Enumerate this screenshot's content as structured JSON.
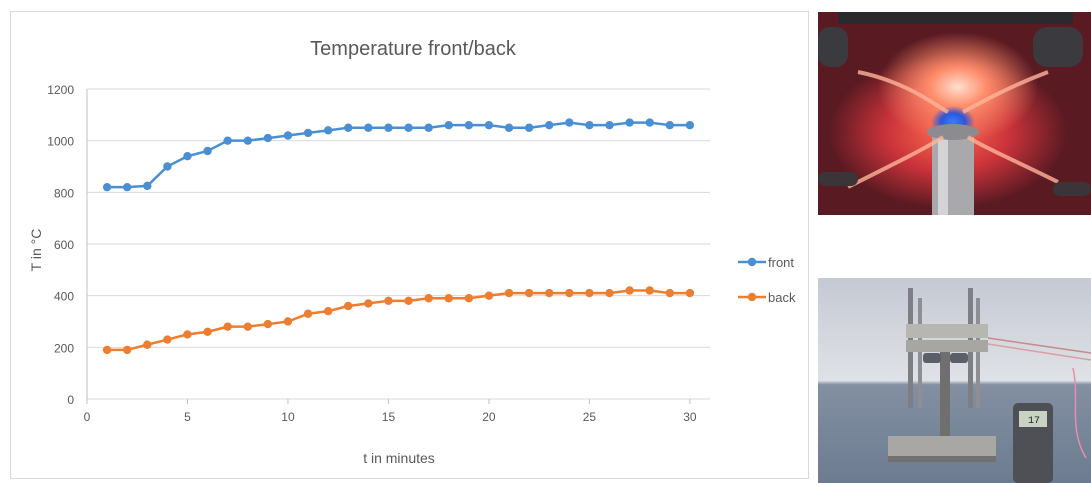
{
  "chart_data": {
    "type": "line",
    "title": "Temperature front/back",
    "xlabel": "t in minutes",
    "ylabel": "T in °C",
    "xlim": [
      0,
      31
    ],
    "ylim": [
      0,
      1200
    ],
    "xticks": [
      0,
      5,
      10,
      15,
      20,
      25,
      30
    ],
    "yticks": [
      0,
      200,
      400,
      600,
      800,
      1000,
      1200
    ],
    "grid": "horizontal",
    "legend_position": "right",
    "x": [
      1,
      2,
      3,
      4,
      5,
      6,
      7,
      8,
      9,
      10,
      11,
      12,
      13,
      14,
      15,
      16,
      17,
      18,
      19,
      20,
      21,
      22,
      23,
      24,
      25,
      26,
      27,
      28,
      29,
      30
    ],
    "series": [
      {
        "name": "front",
        "color": "#4a8fd4",
        "values": [
          820,
          820,
          825,
          900,
          940,
          960,
          1000,
          1000,
          1010,
          1020,
          1030,
          1040,
          1050,
          1050,
          1050,
          1050,
          1050,
          1060,
          1060,
          1060,
          1050,
          1050,
          1060,
          1070,
          1060,
          1060,
          1070,
          1070,
          1060,
          1060
        ]
      },
      {
        "name": "back",
        "color": "#ed7d31",
        "values": [
          190,
          190,
          210,
          230,
          250,
          260,
          280,
          280,
          290,
          300,
          330,
          340,
          360,
          370,
          380,
          380,
          390,
          390,
          390,
          400,
          410,
          410,
          410,
          410,
          410,
          410,
          420,
          420,
          410,
          410
        ]
      }
    ]
  },
  "photos": [
    {
      "icon": "burner-flame-photo"
    },
    {
      "icon": "test-rig-photo",
      "meter_display": "17"
    }
  ]
}
